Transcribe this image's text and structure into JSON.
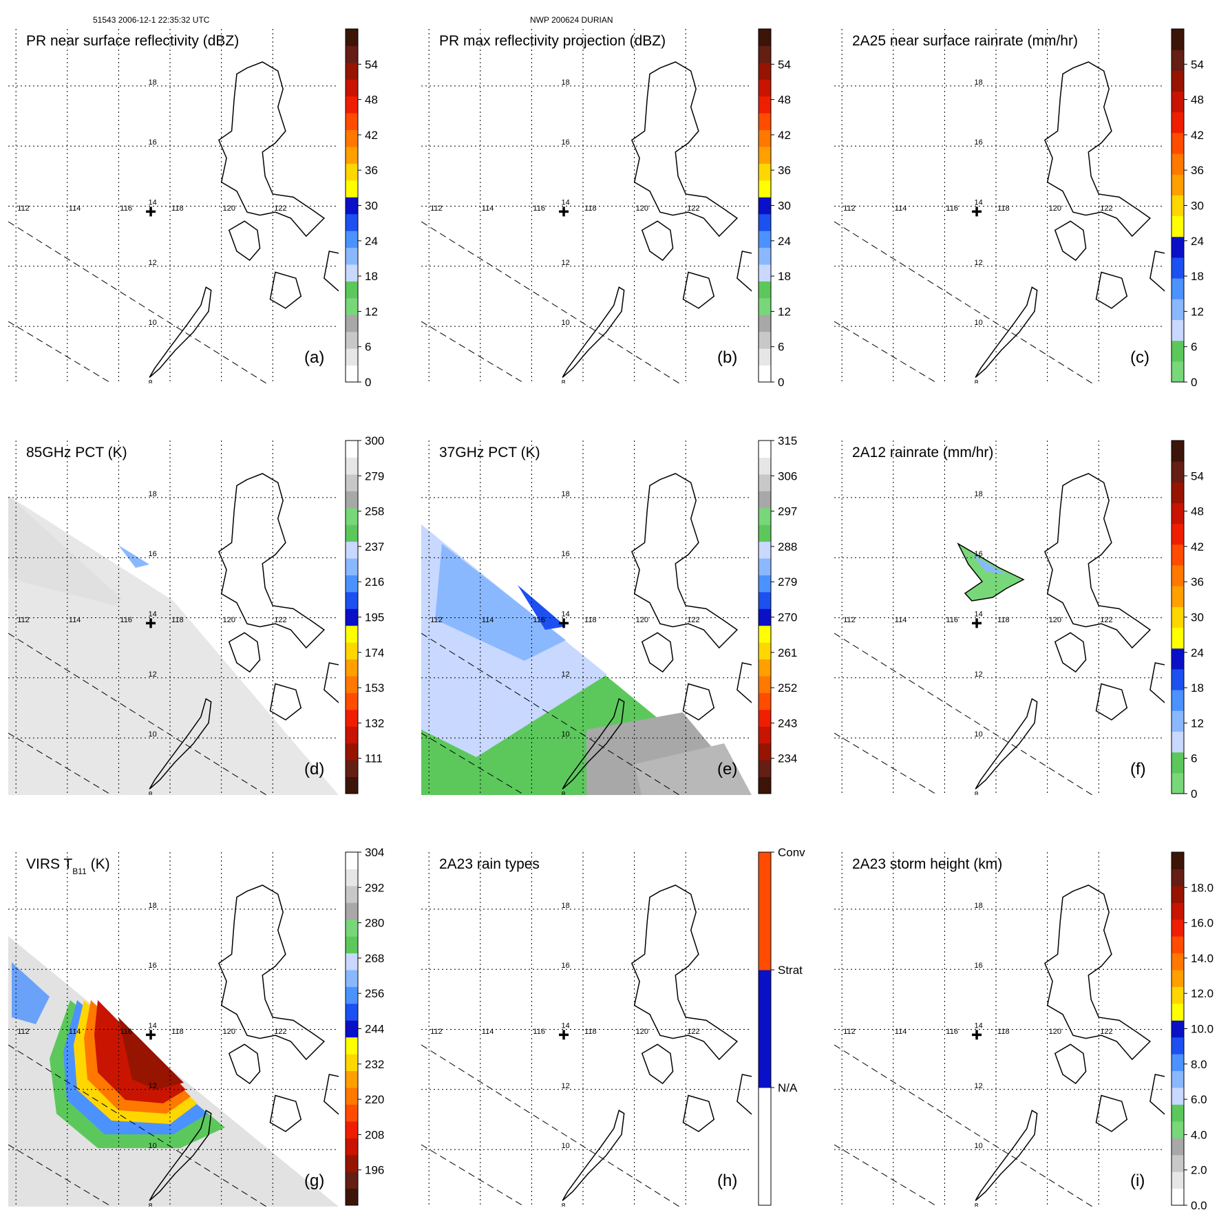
{
  "header": {
    "orbit_time": "51543 2006-12-1 22:35:32 UTC",
    "storm": "NWP 200624 DURIAN"
  },
  "map_ticks": {
    "lon": [
      "112",
      "114",
      "116",
      "118",
      "120",
      "122"
    ],
    "lat": [
      "18",
      "16",
      "14",
      "12",
      "10",
      "8"
    ]
  },
  "palettes": {
    "rainbow": [
      "#ffffff",
      "#e6e6e6",
      "#c8c8c8",
      "#a8a8a8",
      "#78d778",
      "#5cc85c",
      "#c8d8ff",
      "#8ab8ff",
      "#4c92ff",
      "#1c50f0",
      "#0a10c8",
      "#ffff00",
      "#ffd700",
      "#ff9f00",
      "#ff7800",
      "#ff4c00",
      "#f01e00",
      "#c81400",
      "#961400",
      "#641e14",
      "#3c1408"
    ],
    "rain": [
      "#78d778",
      "#5cc85c",
      "#c8d8ff",
      "#8ab8ff",
      "#4c92ff",
      "#1c50f0",
      "#0a10c8",
      "#ffff00",
      "#ffd700",
      "#ff9f00",
      "#ff7800",
      "#ff4c00",
      "#f01e00",
      "#c81400",
      "#961400",
      "#641e14",
      "#3c1408"
    ],
    "reversed": [
      "#3c1408",
      "#641e14",
      "#961400",
      "#c81400",
      "#f01e00",
      "#ff4c00",
      "#ff7800",
      "#ff9f00",
      "#ffd700",
      "#ffff00",
      "#0a10c8",
      "#1c50f0",
      "#4c92ff",
      "#8ab8ff",
      "#c8d8ff",
      "#5cc85c",
      "#78d778",
      "#a8a8a8",
      "#c8c8c8",
      "#e6e6e6",
      "#ffffff"
    ],
    "types": [
      "#ffffff",
      "#0a10c8",
      "#ff4c00"
    ]
  },
  "panels": [
    {
      "id": "a",
      "title": "PR near surface reflectivity (dBZ)",
      "label": "(a)",
      "palette": "rainbow",
      "cb_min": 0,
      "cb_max": 60,
      "ticks": [
        {
          "v": 0,
          "t": "0"
        },
        {
          "v": 6,
          "t": "6"
        },
        {
          "v": 12,
          "t": "12"
        },
        {
          "v": 18,
          "t": "18"
        },
        {
          "v": 24,
          "t": "24"
        },
        {
          "v": 30,
          "t": "30"
        },
        {
          "v": 36,
          "t": "36"
        },
        {
          "v": 42,
          "t": "42"
        },
        {
          "v": 48,
          "t": "48"
        },
        {
          "v": 54,
          "t": "54"
        }
      ],
      "swath": "pr",
      "fill": "none"
    },
    {
      "id": "b",
      "title": "PR max reflectivity projection (dBZ)",
      "label": "(b)",
      "palette": "rainbow",
      "cb_min": 0,
      "cb_max": 60,
      "ticks": [
        {
          "v": 0,
          "t": "0"
        },
        {
          "v": 6,
          "t": "6"
        },
        {
          "v": 12,
          "t": "12"
        },
        {
          "v": 18,
          "t": "18"
        },
        {
          "v": 24,
          "t": "24"
        },
        {
          "v": 30,
          "t": "30"
        },
        {
          "v": 36,
          "t": "36"
        },
        {
          "v": 42,
          "t": "42"
        },
        {
          "v": 48,
          "t": "48"
        },
        {
          "v": 54,
          "t": "54"
        }
      ],
      "swath": "pr",
      "fill": "none"
    },
    {
      "id": "c",
      "title": "2A25 near surface rainrate (mm/hr)",
      "label": "(c)",
      "palette": "rain",
      "cb_min": 0,
      "cb_max": 60,
      "ticks": [
        {
          "v": 0,
          "t": "0"
        },
        {
          "v": 6,
          "t": "6"
        },
        {
          "v": 12,
          "t": "12"
        },
        {
          "v": 18,
          "t": "18"
        },
        {
          "v": 24,
          "t": "24"
        },
        {
          "v": 30,
          "t": "30"
        },
        {
          "v": 36,
          "t": "36"
        },
        {
          "v": 42,
          "t": "42"
        },
        {
          "v": 48,
          "t": "48"
        },
        {
          "v": 54,
          "t": "54"
        }
      ],
      "swath": "pr",
      "fill": "none"
    },
    {
      "id": "d",
      "title": "85GHz PCT (K)",
      "label": "(d)",
      "palette": "reversed",
      "cb_min": 90,
      "cb_max": 300,
      "ticks": [
        {
          "v": 300,
          "t": "300"
        },
        {
          "v": 279,
          "t": "279"
        },
        {
          "v": 258,
          "t": "258"
        },
        {
          "v": 237,
          "t": "237"
        },
        {
          "v": 216,
          "t": "216"
        },
        {
          "v": 195,
          "t": "195"
        },
        {
          "v": 174,
          "t": "174"
        },
        {
          "v": 153,
          "t": "153"
        },
        {
          "v": 132,
          "t": "132"
        },
        {
          "v": 111,
          "t": "111"
        }
      ],
      "swath": "pr",
      "fill": "gray"
    },
    {
      "id": "e",
      "title": "37GHz PCT (K)",
      "label": "(e)",
      "palette": "reversed",
      "cb_min": 225,
      "cb_max": 315,
      "ticks": [
        {
          "v": 315,
          "t": "315"
        },
        {
          "v": 306,
          "t": "306"
        },
        {
          "v": 297,
          "t": "297"
        },
        {
          "v": 288,
          "t": "288"
        },
        {
          "v": 279,
          "t": "279"
        },
        {
          "v": 270,
          "t": "270"
        },
        {
          "v": 261,
          "t": "261"
        },
        {
          "v": 252,
          "t": "252"
        },
        {
          "v": 243,
          "t": "243"
        },
        {
          "v": 234,
          "t": "234"
        }
      ],
      "swath": "none",
      "fill": "tmi37"
    },
    {
      "id": "f",
      "title": "2A12 rainrate (mm/hr)",
      "label": "(f)",
      "palette": "rain",
      "cb_min": 0,
      "cb_max": 60,
      "ticks": [
        {
          "v": 0,
          "t": "0"
        },
        {
          "v": 6,
          "t": "6"
        },
        {
          "v": 12,
          "t": "12"
        },
        {
          "v": 18,
          "t": "18"
        },
        {
          "v": 24,
          "t": "24"
        },
        {
          "v": 30,
          "t": "30"
        },
        {
          "v": 36,
          "t": "36"
        },
        {
          "v": 42,
          "t": "42"
        },
        {
          "v": 48,
          "t": "48"
        },
        {
          "v": 54,
          "t": "54"
        }
      ],
      "swath": "pr",
      "fill": "rain2a12"
    },
    {
      "id": "g",
      "title": "VIRS T",
      "title_sub": "B11",
      "title_suffix": " (K)",
      "label": "(g)",
      "palette": "reversed",
      "cb_min": 184,
      "cb_max": 304,
      "ticks": [
        {
          "v": 304,
          "t": "304"
        },
        {
          "v": 292,
          "t": "292"
        },
        {
          "v": 280,
          "t": "280"
        },
        {
          "v": 268,
          "t": "268"
        },
        {
          "v": 256,
          "t": "256"
        },
        {
          "v": 244,
          "t": "244"
        },
        {
          "v": 232,
          "t": "232"
        },
        {
          "v": 220,
          "t": "220"
        },
        {
          "v": 208,
          "t": "208"
        },
        {
          "v": 196,
          "t": "196"
        }
      ],
      "swath": "pr",
      "fill": "virs"
    },
    {
      "id": "h",
      "title": "2A23 rain types",
      "label": "(h)",
      "palette": "types",
      "cb_min": 0,
      "cb_max": 3,
      "ticks": [
        {
          "v": 1,
          "t": "N/A"
        },
        {
          "v": 2,
          "t": "Strat"
        },
        {
          "v": 3,
          "t": "Conv"
        }
      ],
      "swath": "pr",
      "fill": "none"
    },
    {
      "id": "i",
      "title": "2A23 storm height (km)",
      "label": "(i)",
      "palette": "rainbow",
      "cb_min": 0,
      "cb_max": 20,
      "ticks": [
        {
          "v": 0,
          "t": "0.0"
        },
        {
          "v": 2,
          "t": "2.0"
        },
        {
          "v": 4,
          "t": "4.0"
        },
        {
          "v": 6,
          "t": "6.0"
        },
        {
          "v": 8,
          "t": "8.0"
        },
        {
          "v": 10,
          "t": "10.0"
        },
        {
          "v": 12,
          "t": "12.0"
        },
        {
          "v": 14,
          "t": "14.0"
        },
        {
          "v": 16,
          "t": "16.0"
        },
        {
          "v": 18,
          "t": "18.0"
        }
      ],
      "swath": "pr",
      "fill": "none"
    }
  ]
}
